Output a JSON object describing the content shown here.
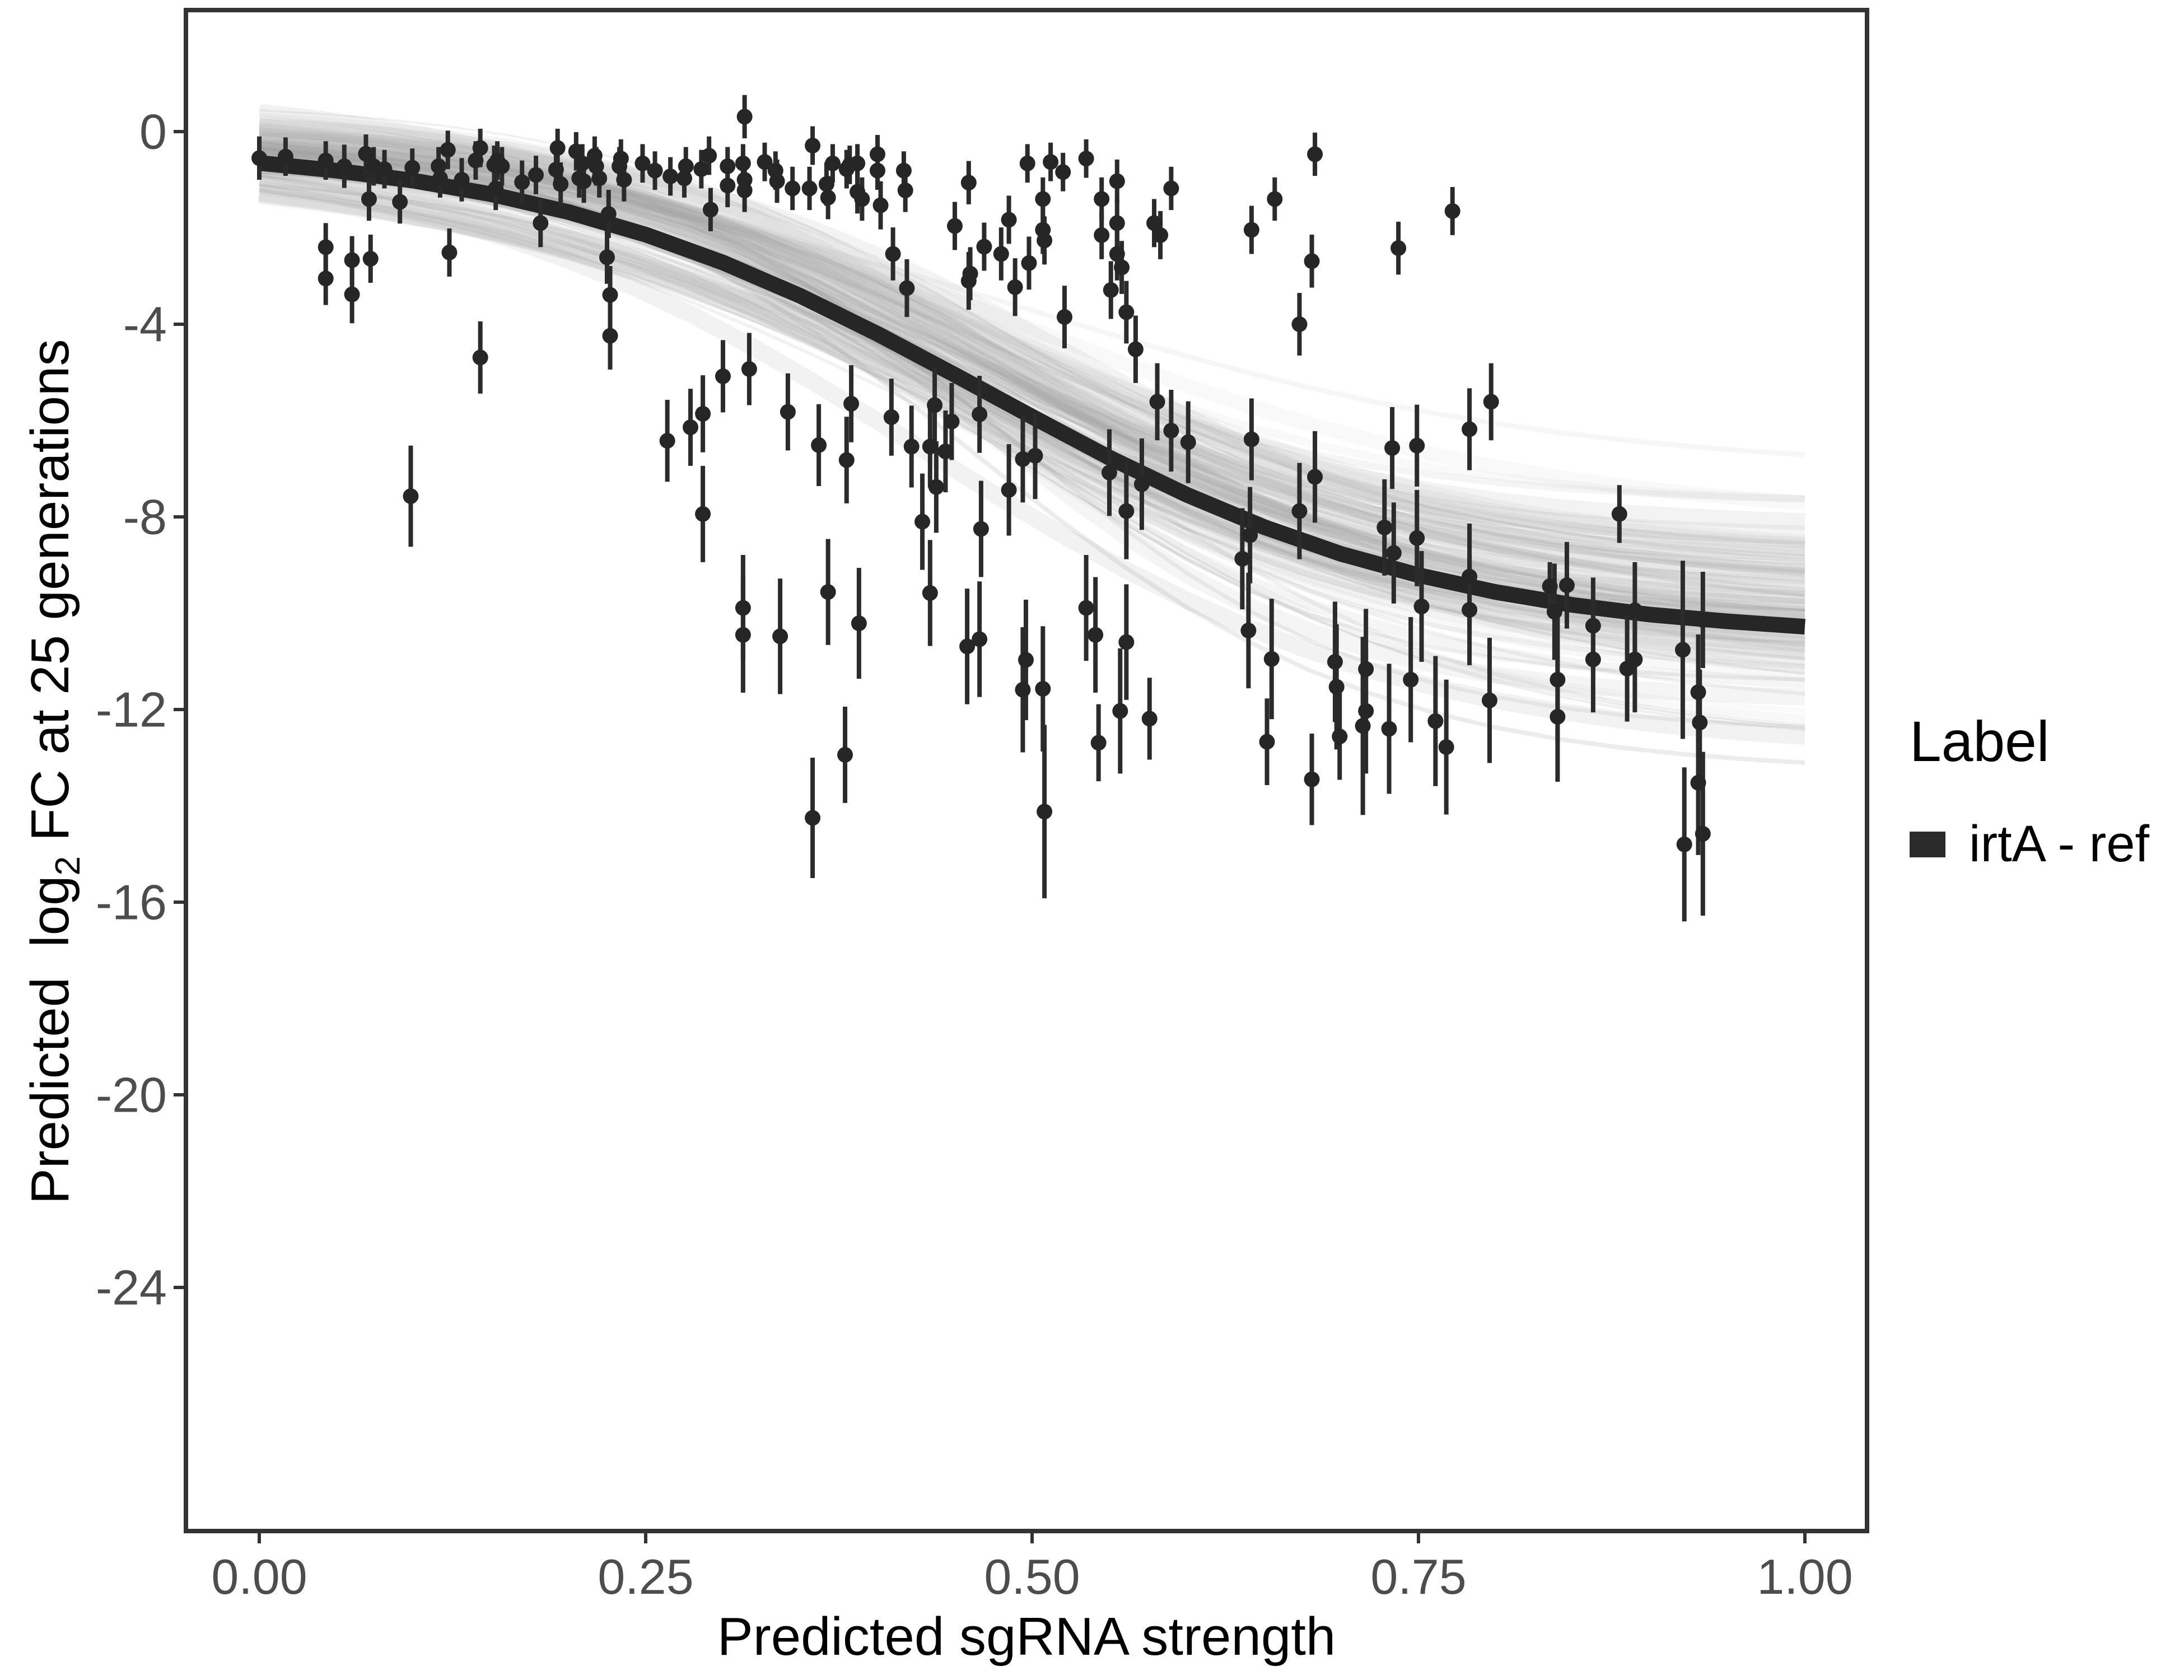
{
  "colors": {
    "background": "#ffffff",
    "panel_border": "#333333",
    "tick": "#333333",
    "tick_label": "#4d4d4d",
    "text": "#000000",
    "point": "#262626",
    "errorbar": "#2b2b2b",
    "trend": "#262626",
    "band": "#9a9a9a",
    "legend_swatch": "#2b2b2b"
  },
  "chart_data": {
    "type": "scatter",
    "title": "",
    "xlabel": "Predicted sgRNA strength",
    "ylabel": "Predicted log2 FC at 25 generations",
    "ylabel_parts": {
      "pre": "Predicted  log",
      "sub": "2",
      "post": " FC at 25 generations"
    },
    "xlim": [
      -0.05,
      1.04
    ],
    "ylim": [
      -29,
      2.5
    ],
    "grid": "off",
    "x_ticks": {
      "values": [
        0,
        0.25,
        0.5,
        0.75,
        1.0
      ],
      "labels": [
        "0.00",
        "0.25",
        "0.50",
        "0.75",
        "1.00"
      ]
    },
    "y_ticks": {
      "values": [
        0,
        -4,
        -8,
        -12,
        -16,
        -20,
        -24
      ],
      "labels": [
        "0",
        "-4",
        "-8",
        "-12",
        "-16",
        "-20",
        "-24"
      ]
    },
    "legend": {
      "title": "Label",
      "position": "right",
      "items": [
        {
          "label": "irtA - ref",
          "swatch_color": "#2b2b2b"
        }
      ]
    },
    "series": [
      {
        "name": "irtA - ref",
        "type": "pointrange",
        "points": [
          [
            0.0,
            -0.55,
            0.45
          ],
          [
            0.017,
            -0.52,
            0.4
          ],
          [
            0.043,
            -0.6,
            0.4
          ],
          [
            0.055,
            -0.72,
            0.45
          ],
          [
            0.069,
            -0.46,
            0.4
          ],
          [
            0.071,
            -1.4,
            0.45
          ],
          [
            0.074,
            -0.72,
            0.4
          ],
          [
            0.081,
            -0.78,
            0.4
          ],
          [
            0.091,
            -1.46,
            0.45
          ],
          [
            0.099,
            -0.75,
            0.4
          ],
          [
            0.116,
            -0.72,
            0.4
          ],
          [
            0.117,
            -0.97,
            0.4
          ],
          [
            0.122,
            -0.38,
            0.4
          ],
          [
            0.131,
            -1.0,
            0.45
          ],
          [
            0.14,
            -0.6,
            0.4
          ],
          [
            0.143,
            -0.34,
            0.4
          ],
          [
            0.152,
            -0.69,
            0.4
          ],
          [
            0.154,
            -0.6,
            0.4
          ],
          [
            0.157,
            -0.72,
            0.4
          ],
          [
            0.153,
            -1.18,
            0.45
          ],
          [
            0.17,
            -1.05,
            0.45
          ],
          [
            0.179,
            -0.9,
            0.4
          ],
          [
            0.182,
            -1.9,
            0.5
          ],
          [
            0.192,
            -0.79,
            0.4
          ],
          [
            0.193,
            -0.34,
            0.4
          ],
          [
            0.195,
            -1.09,
            0.45
          ],
          [
            0.205,
            -0.41,
            0.4
          ],
          [
            0.207,
            -0.97,
            0.4
          ],
          [
            0.209,
            -0.66,
            0.4
          ],
          [
            0.21,
            -1.03,
            0.45
          ],
          [
            0.217,
            -0.5,
            0.4
          ],
          [
            0.218,
            -0.72,
            0.4
          ],
          [
            0.22,
            -0.97,
            0.4
          ],
          [
            0.226,
            -1.71,
            0.5
          ],
          [
            0.225,
            -2.61,
            0.55
          ],
          [
            0.233,
            -0.72,
            0.4
          ],
          [
            0.234,
            -0.56,
            0.4
          ],
          [
            0.236,
            -1.0,
            0.45
          ],
          [
            0.043,
            -2.4,
            0.5
          ],
          [
            0.043,
            -3.05,
            0.55
          ],
          [
            0.06,
            -2.67,
            0.5
          ],
          [
            0.06,
            -3.38,
            0.6
          ],
          [
            0.072,
            -2.64,
            0.5
          ],
          [
            0.123,
            -2.51,
            0.5
          ],
          [
            0.143,
            -4.69,
            0.75
          ],
          [
            0.227,
            -3.39,
            0.6
          ],
          [
            0.227,
            -4.24,
            0.7
          ],
          [
            0.098,
            -7.57,
            1.05
          ],
          [
            0.248,
            -0.66,
            0.4
          ],
          [
            0.256,
            -0.81,
            0.4
          ],
          [
            0.266,
            -0.93,
            0.4
          ],
          [
            0.275,
            -0.97,
            0.4
          ],
          [
            0.276,
            -0.72,
            0.4
          ],
          [
            0.286,
            -0.78,
            0.4
          ],
          [
            0.291,
            -0.5,
            0.4
          ],
          [
            0.292,
            -1.62,
            0.45
          ],
          [
            0.303,
            -0.72,
            0.4
          ],
          [
            0.303,
            -1.12,
            0.45
          ],
          [
            0.313,
            -0.66,
            0.4
          ],
          [
            0.314,
            0.31,
            0.45
          ],
          [
            0.314,
            -1.0,
            0.4
          ],
          [
            0.314,
            -1.22,
            0.45
          ],
          [
            0.327,
            -0.63,
            0.4
          ],
          [
            0.334,
            -0.81,
            0.4
          ],
          [
            0.335,
            -1.03,
            0.45
          ],
          [
            0.345,
            -1.18,
            0.45
          ],
          [
            0.356,
            -1.18,
            0.45
          ],
          [
            0.358,
            -0.29,
            0.4
          ],
          [
            0.367,
            -1.09,
            0.45
          ],
          [
            0.368,
            -1.37,
            0.45
          ],
          [
            0.371,
            -0.66,
            0.4
          ],
          [
            0.38,
            -0.78,
            0.4
          ],
          [
            0.382,
            -0.69,
            0.4
          ],
          [
            0.387,
            -0.66,
            0.4
          ],
          [
            0.387,
            -1.25,
            0.45
          ],
          [
            0.39,
            -1.4,
            0.45
          ],
          [
            0.4,
            -0.47,
            0.4
          ],
          [
            0.4,
            -0.81,
            0.4
          ],
          [
            0.402,
            -1.53,
            0.5
          ],
          [
            0.41,
            -2.54,
            0.55
          ],
          [
            0.417,
            -0.81,
            0.4
          ],
          [
            0.418,
            -1.22,
            0.45
          ],
          [
            0.419,
            -3.25,
            0.6
          ],
          [
            0.45,
            -1.96,
            0.5
          ],
          [
            0.459,
            -3.1,
            0.6
          ],
          [
            0.46,
            -2.95,
            0.55
          ],
          [
            0.469,
            -2.39,
            0.5
          ],
          [
            0.48,
            -2.54,
            0.55
          ],
          [
            0.485,
            -1.83,
            0.5
          ],
          [
            0.489,
            -3.23,
            0.6
          ],
          [
            0.497,
            -0.66,
            0.4
          ],
          [
            0.498,
            -2.73,
            0.55
          ],
          [
            0.507,
            -1.4,
            0.45
          ],
          [
            0.507,
            -2.04,
            0.5
          ],
          [
            0.508,
            -2.26,
            0.5
          ],
          [
            0.512,
            -0.63,
            0.4
          ],
          [
            0.52,
            -0.84,
            0.4
          ],
          [
            0.521,
            -3.85,
            0.65
          ],
          [
            0.459,
            -1.06,
            0.45
          ],
          [
            0.535,
            -0.56,
            0.4
          ],
          [
            0.264,
            -6.42,
            0.85
          ],
          [
            0.279,
            -6.14,
            0.8
          ],
          [
            0.287,
            -5.86,
            0.8
          ],
          [
            0.3,
            -5.08,
            0.75
          ],
          [
            0.317,
            -4.93,
            0.75
          ],
          [
            0.342,
            -5.82,
            0.8
          ],
          [
            0.362,
            -6.51,
            0.85
          ],
          [
            0.38,
            -6.82,
            0.9
          ],
          [
            0.422,
            -6.54,
            0.85
          ],
          [
            0.434,
            -6.54,
            0.85
          ],
          [
            0.444,
            -6.64,
            0.85
          ],
          [
            0.485,
            -7.44,
            0.95
          ],
          [
            0.383,
            -5.65,
            0.8
          ],
          [
            0.409,
            -5.93,
            0.8
          ],
          [
            0.437,
            -5.68,
            0.8
          ],
          [
            0.448,
            -6.02,
            0.8
          ],
          [
            0.466,
            -5.87,
            0.8
          ],
          [
            0.494,
            -6.8,
            0.9
          ],
          [
            0.502,
            -6.73,
            0.9
          ],
          [
            0.438,
            -7.38,
            0.95
          ],
          [
            0.429,
            -8.1,
            1.0
          ],
          [
            0.467,
            -8.25,
            1.0
          ],
          [
            0.287,
            -7.94,
            1.0
          ],
          [
            0.313,
            -9.89,
            1.1
          ],
          [
            0.313,
            -10.45,
            1.2
          ],
          [
            0.337,
            -10.48,
            1.2
          ],
          [
            0.368,
            -9.56,
            1.1
          ],
          [
            0.388,
            -10.21,
            1.15
          ],
          [
            0.434,
            -9.58,
            1.1
          ],
          [
            0.458,
            -10.69,
            1.2
          ],
          [
            0.466,
            -10.54,
            1.2
          ],
          [
            0.496,
            -10.97,
            1.25
          ],
          [
            0.494,
            -11.59,
            1.3
          ],
          [
            0.507,
            -11.57,
            1.3
          ],
          [
            0.535,
            -9.89,
            1.1
          ],
          [
            0.541,
            -10.45,
            1.2
          ],
          [
            0.555,
            -1.03,
            0.45
          ],
          [
            0.59,
            -1.18,
            0.45
          ],
          [
            0.545,
            -1.4,
            0.45
          ],
          [
            0.555,
            -1.9,
            0.5
          ],
          [
            0.545,
            -2.15,
            0.5
          ],
          [
            0.579,
            -1.9,
            0.5
          ],
          [
            0.583,
            -2.15,
            0.5
          ],
          [
            0.555,
            -2.54,
            0.55
          ],
          [
            0.558,
            -2.82,
            0.55
          ],
          [
            0.551,
            -3.29,
            0.6
          ],
          [
            0.561,
            -3.75,
            0.65
          ],
          [
            0.567,
            -4.52,
            0.7
          ],
          [
            0.581,
            -5.61,
            0.8
          ],
          [
            0.683,
            -0.47,
            0.45
          ],
          [
            0.657,
            -1.4,
            0.45
          ],
          [
            0.642,
            -2.04,
            0.5
          ],
          [
            0.681,
            -2.69,
            0.55
          ],
          [
            0.673,
            -4.0,
            0.65
          ],
          [
            0.737,
            -2.42,
            0.55
          ],
          [
            0.772,
            -1.65,
            0.5
          ],
          [
            0.59,
            -6.21,
            0.85
          ],
          [
            0.601,
            -6.45,
            0.85
          ],
          [
            0.55,
            -7.08,
            0.9
          ],
          [
            0.571,
            -7.32,
            0.95
          ],
          [
            0.561,
            -7.88,
            1.0
          ],
          [
            0.642,
            -6.39,
            0.85
          ],
          [
            0.683,
            -7.17,
            0.95
          ],
          [
            0.673,
            -7.88,
            1.0
          ],
          [
            0.641,
            -8.38,
            1.0
          ],
          [
            0.636,
            -8.87,
            1.05
          ],
          [
            0.728,
            -8.22,
            1.0
          ],
          [
            0.734,
            -8.75,
            1.05
          ],
          [
            0.749,
            -6.52,
            0.85
          ],
          [
            0.749,
            -8.44,
            1.0
          ],
          [
            0.783,
            -6.18,
            0.85
          ],
          [
            0.783,
            -9.24,
            1.1
          ],
          [
            0.783,
            -9.93,
            1.15
          ],
          [
            0.752,
            -9.86,
            1.15
          ],
          [
            0.797,
            -5.61,
            0.8
          ],
          [
            0.733,
            -6.57,
            0.85
          ],
          [
            0.561,
            -10.6,
            1.2
          ],
          [
            0.557,
            -12.03,
            1.3
          ],
          [
            0.64,
            -10.36,
            1.2
          ],
          [
            0.655,
            -10.95,
            1.25
          ],
          [
            0.696,
            -11.01,
            1.25
          ],
          [
            0.697,
            -11.53,
            1.3
          ],
          [
            0.716,
            -11.16,
            1.25
          ],
          [
            0.716,
            -12.03,
            1.3
          ],
          [
            0.745,
            -11.38,
            1.3
          ],
          [
            0.731,
            -12.4,
            1.35
          ],
          [
            0.768,
            -12.78,
            1.4
          ],
          [
            0.761,
            -12.24,
            1.35
          ],
          [
            0.796,
            -11.81,
            1.3
          ],
          [
            0.84,
            -11.38,
            1.3
          ],
          [
            0.84,
            -12.15,
            1.35
          ],
          [
            0.379,
            -12.94,
            1.0
          ],
          [
            0.358,
            -14.25,
            1.25
          ],
          [
            0.508,
            -14.12,
            1.8
          ],
          [
            0.543,
            -12.69,
            0.8
          ],
          [
            0.576,
            -12.19,
            0.85
          ],
          [
            0.652,
            -12.67,
            0.9
          ],
          [
            0.681,
            -13.45,
            0.95
          ],
          [
            0.699,
            -12.56,
            0.9
          ],
          [
            0.714,
            -12.34,
            1.85
          ],
          [
            0.88,
            -7.94,
            0.6
          ],
          [
            0.835,
            -9.44,
            0.5
          ],
          [
            0.846,
            -9.42,
            0.9
          ],
          [
            0.838,
            -9.97,
            1.0
          ],
          [
            0.89,
            -9.94,
            1.0
          ],
          [
            0.934,
            -10.14,
            1.0
          ],
          [
            0.863,
            -10.26,
            1.0
          ],
          [
            0.921,
            -10.76,
            1.85
          ],
          [
            0.863,
            -10.96,
            1.1
          ],
          [
            0.89,
            -10.96,
            1.1
          ],
          [
            0.885,
            -11.15,
            1.1
          ],
          [
            0.931,
            -11.64,
            1.2
          ],
          [
            0.932,
            -12.27,
            1.1
          ],
          [
            0.931,
            -13.52,
            1.5
          ],
          [
            0.934,
            -14.58,
            1.7
          ],
          [
            0.922,
            -14.8,
            1.6
          ]
        ]
      }
    ],
    "trend": {
      "type": "logistic-fit",
      "x": [
        0,
        0.05,
        0.1,
        0.15,
        0.2,
        0.25,
        0.3,
        0.35,
        0.4,
        0.45,
        0.5,
        0.55,
        0.6,
        0.65,
        0.7,
        0.75,
        0.8,
        0.85,
        0.9,
        0.95,
        1.0
      ],
      "y": [
        -0.65,
        -0.81,
        -1.02,
        -1.3,
        -1.67,
        -2.14,
        -2.72,
        -3.41,
        -4.2,
        -5.05,
        -5.92,
        -6.77,
        -7.54,
        -8.21,
        -8.77,
        -9.21,
        -9.56,
        -9.83,
        -10.03,
        -10.17,
        -10.28
      ]
    },
    "band": {
      "style": "bootstrap-spaghetti",
      "count": 85
    }
  }
}
